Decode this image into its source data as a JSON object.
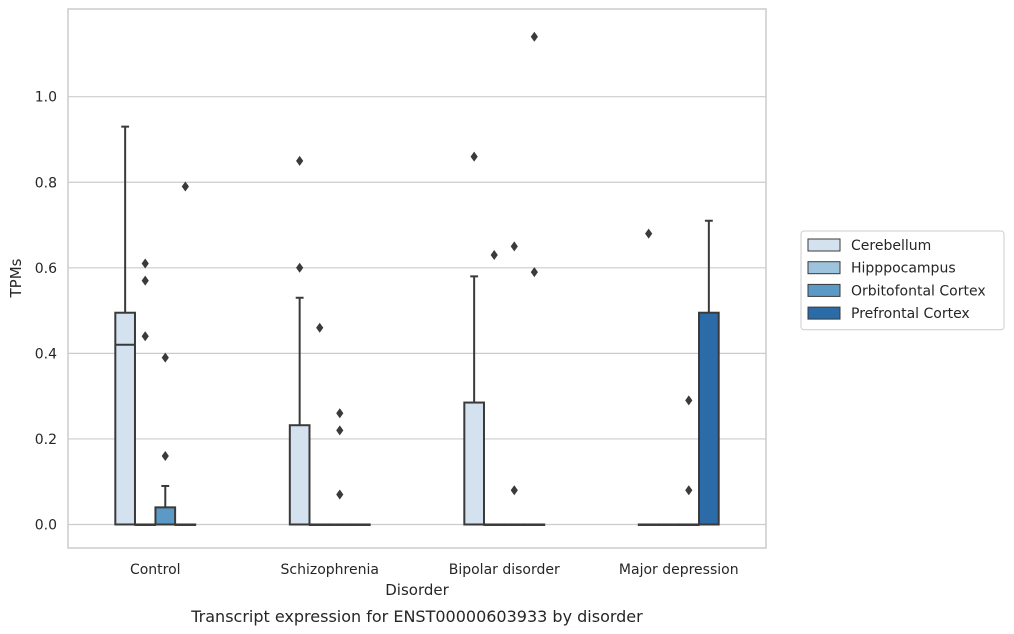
{
  "chart_data": {
    "type": "box",
    "title": "",
    "caption": "Transcript expression for ENST00000603933 by disorder",
    "xlabel": "Disorder",
    "ylabel": "TPMs",
    "ylim": [
      -0.055,
      1.205
    ],
    "yticks": [
      0.0,
      0.2,
      0.4,
      0.6,
      0.8,
      1.0
    ],
    "ytick_labels": [
      "0.0",
      "0.2",
      "0.4",
      "0.6",
      "0.8",
      "1.0"
    ],
    "grid": "horizontal",
    "legend_position": "right",
    "categories": [
      "Control",
      "Schizophrenia",
      "Bipolar disorder",
      "Major depression"
    ],
    "series": [
      {
        "name": "Cerebellum",
        "color": "#d4e2f0",
        "boxes": [
          {
            "q1": 0.0,
            "median": 0.42,
            "q3": 0.495,
            "whisker_low": 0.0,
            "whisker_high": 0.93,
            "outliers": []
          },
          {
            "q1": 0.0,
            "median": 0.0,
            "q3": 0.232,
            "whisker_low": 0.0,
            "whisker_high": 0.53,
            "outliers": [
              0.6,
              0.85
            ]
          },
          {
            "q1": 0.0,
            "median": 0.0,
            "q3": 0.285,
            "whisker_low": 0.0,
            "whisker_high": 0.58,
            "outliers": [
              0.86
            ]
          },
          {
            "q1": 0.0,
            "median": 0.0,
            "q3": 0.0,
            "whisker_low": 0.0,
            "whisker_high": 0.0,
            "outliers": [
              0.68
            ]
          }
        ]
      },
      {
        "name": "Hipppocampus",
        "color": "#9ec3dc",
        "boxes": [
          {
            "q1": 0.0,
            "median": 0.0,
            "q3": 0.0,
            "whisker_low": 0.0,
            "whisker_high": 0.0,
            "outliers": [
              0.44,
              0.57,
              0.61
            ]
          },
          {
            "q1": 0.0,
            "median": 0.0,
            "q3": 0.0,
            "whisker_low": 0.0,
            "whisker_high": 0.0,
            "outliers": [
              0.46
            ]
          },
          {
            "q1": 0.0,
            "median": 0.0,
            "q3": 0.0,
            "whisker_low": 0.0,
            "whisker_high": 0.0,
            "outliers": [
              0.63
            ]
          },
          {
            "q1": 0.0,
            "median": 0.0,
            "q3": 0.0,
            "whisker_low": 0.0,
            "whisker_high": 0.0,
            "outliers": []
          }
        ]
      },
      {
        "name": "Orbitofontal Cortex",
        "color": "#5b9ac6",
        "boxes": [
          {
            "q1": 0.0,
            "median": 0.0,
            "q3": 0.04,
            "whisker_low": 0.0,
            "whisker_high": 0.09,
            "outliers": [
              0.16,
              0.39
            ]
          },
          {
            "q1": 0.0,
            "median": 0.0,
            "q3": 0.0,
            "whisker_low": 0.0,
            "whisker_high": 0.0,
            "outliers": [
              0.07,
              0.22,
              0.26
            ]
          },
          {
            "q1": 0.0,
            "median": 0.0,
            "q3": 0.0,
            "whisker_low": 0.0,
            "whisker_high": 0.0,
            "outliers": [
              0.08,
              0.65
            ]
          },
          {
            "q1": 0.0,
            "median": 0.0,
            "q3": 0.0,
            "whisker_low": 0.0,
            "whisker_high": 0.0,
            "outliers": [
              0.08,
              0.29
            ]
          }
        ]
      },
      {
        "name": "Prefrontal Cortex",
        "color": "#2b6ba8",
        "boxes": [
          {
            "q1": 0.0,
            "median": 0.0,
            "q3": 0.0,
            "whisker_low": 0.0,
            "whisker_high": 0.0,
            "outliers": [
              0.79
            ]
          },
          {
            "q1": 0.0,
            "median": 0.0,
            "q3": 0.0,
            "whisker_low": 0.0,
            "whisker_high": 0.0,
            "outliers": []
          },
          {
            "q1": 0.0,
            "median": 0.0,
            "q3": 0.0,
            "whisker_low": 0.0,
            "whisker_high": 0.0,
            "outliers": [
              0.59,
              1.14
            ]
          },
          {
            "q1": 0.0,
            "median": 0.0,
            "q3": 0.495,
            "whisker_low": 0.0,
            "whisker_high": 0.71,
            "outliers": []
          }
        ]
      }
    ]
  }
}
